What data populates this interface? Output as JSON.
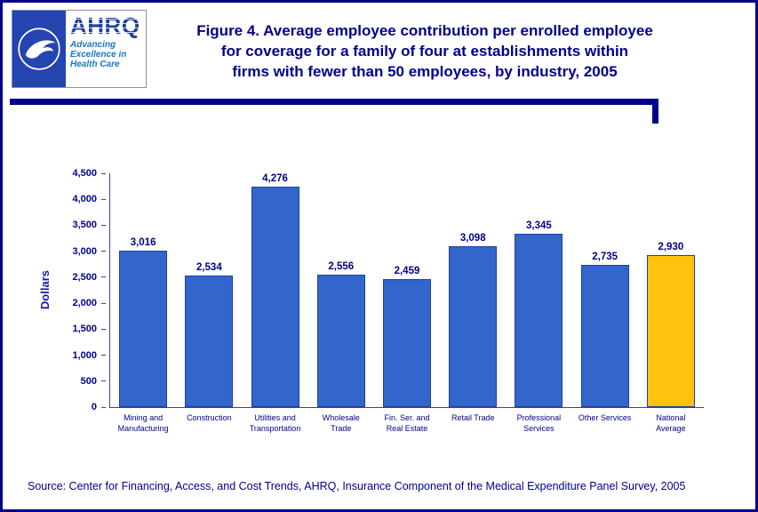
{
  "page": {
    "border_color": "#00008B",
    "background": "#FFFFFF"
  },
  "header": {
    "logo": {
      "ahrq_text": "AHRQ",
      "tagline_lines": [
        "Advancing",
        "Excellence in",
        "Health Care"
      ]
    },
    "title_lines": [
      "Figure 4. Average employee contribution per enrolled employee",
      "for coverage for a family of four at establishments within",
      "firms with fewer than 50 employees, by industry, 2005"
    ]
  },
  "chart_data": {
    "type": "bar",
    "title": "Figure 4. Average employee contribution per enrolled employee for coverage for a family of four at establishments within firms with fewer than 50 employees, by industry, 2005",
    "xlabel": "",
    "ylabel": "Dollars",
    "ylim": [
      0,
      4500
    ],
    "ytick_interval": 500,
    "ytick_labels": [
      "0",
      "500",
      "1,000",
      "1,500",
      "2,000",
      "2,500",
      "3,000",
      "3,500",
      "4,000",
      "4,500"
    ],
    "grid": false,
    "legend": "none",
    "categories": [
      [
        "Mining and",
        "Manufacturing"
      ],
      [
        "Construction"
      ],
      [
        "Utilities and",
        "Transportation"
      ],
      [
        "Wholesale",
        "Trade"
      ],
      [
        "Fin. Ser. and",
        "Real Estate"
      ],
      [
        "Retail Trade"
      ],
      [
        "Professional",
        "Services"
      ],
      [
        "Other Services"
      ],
      [
        "National",
        "Average"
      ]
    ],
    "values": [
      3016,
      2534,
      4276,
      2556,
      2459,
      3098,
      3345,
      2735,
      2930
    ],
    "value_labels": [
      "3,016",
      "2,534",
      "4,276",
      "2,556",
      "2,459",
      "3,098",
      "3,345",
      "2,735",
      "2,930"
    ],
    "bar_color": "#3366CC",
    "bar_border_color": "#1F3F9E",
    "highlight_index": 8,
    "highlight_color": "#FFC20E"
  },
  "source": "Source: Center for Financing, Access, and Cost Trends, AHRQ, Insurance Component of the Medical Expenditure Panel Survey, 2005"
}
